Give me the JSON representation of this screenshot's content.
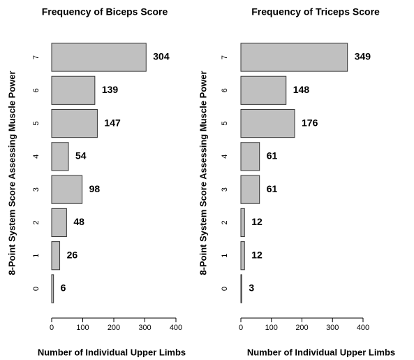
{
  "chart_data": [
    {
      "type": "bar",
      "orientation": "horizontal",
      "title": "Frequency of Biceps Score",
      "xlabel": "Number of Individual Upper Limbs",
      "ylabel": "8-Point System Score Assessing Muscle Power",
      "categories": [
        "0",
        "1",
        "2",
        "3",
        "4",
        "5",
        "6",
        "7"
      ],
      "values": [
        6,
        26,
        48,
        98,
        54,
        147,
        139,
        304
      ],
      "color": "#c0c0c0",
      "xlim": [
        0,
        400
      ],
      "xticks": [
        0,
        100,
        200,
        300,
        400
      ]
    },
    {
      "type": "bar",
      "orientation": "horizontal",
      "title": "Frequency of Triceps Score",
      "xlabel": "Number of Individual Upper Limbs",
      "ylabel": "8-Point System Score Assessing Muscle Power",
      "categories": [
        "0",
        "1",
        "2",
        "3",
        "4",
        "5",
        "6",
        "7"
      ],
      "values": [
        3,
        12,
        12,
        61,
        61,
        176,
        148,
        349
      ],
      "color": "#c0c0c0",
      "xlim": [
        0,
        400
      ],
      "xticks": [
        0,
        100,
        200,
        300,
        400
      ]
    }
  ]
}
